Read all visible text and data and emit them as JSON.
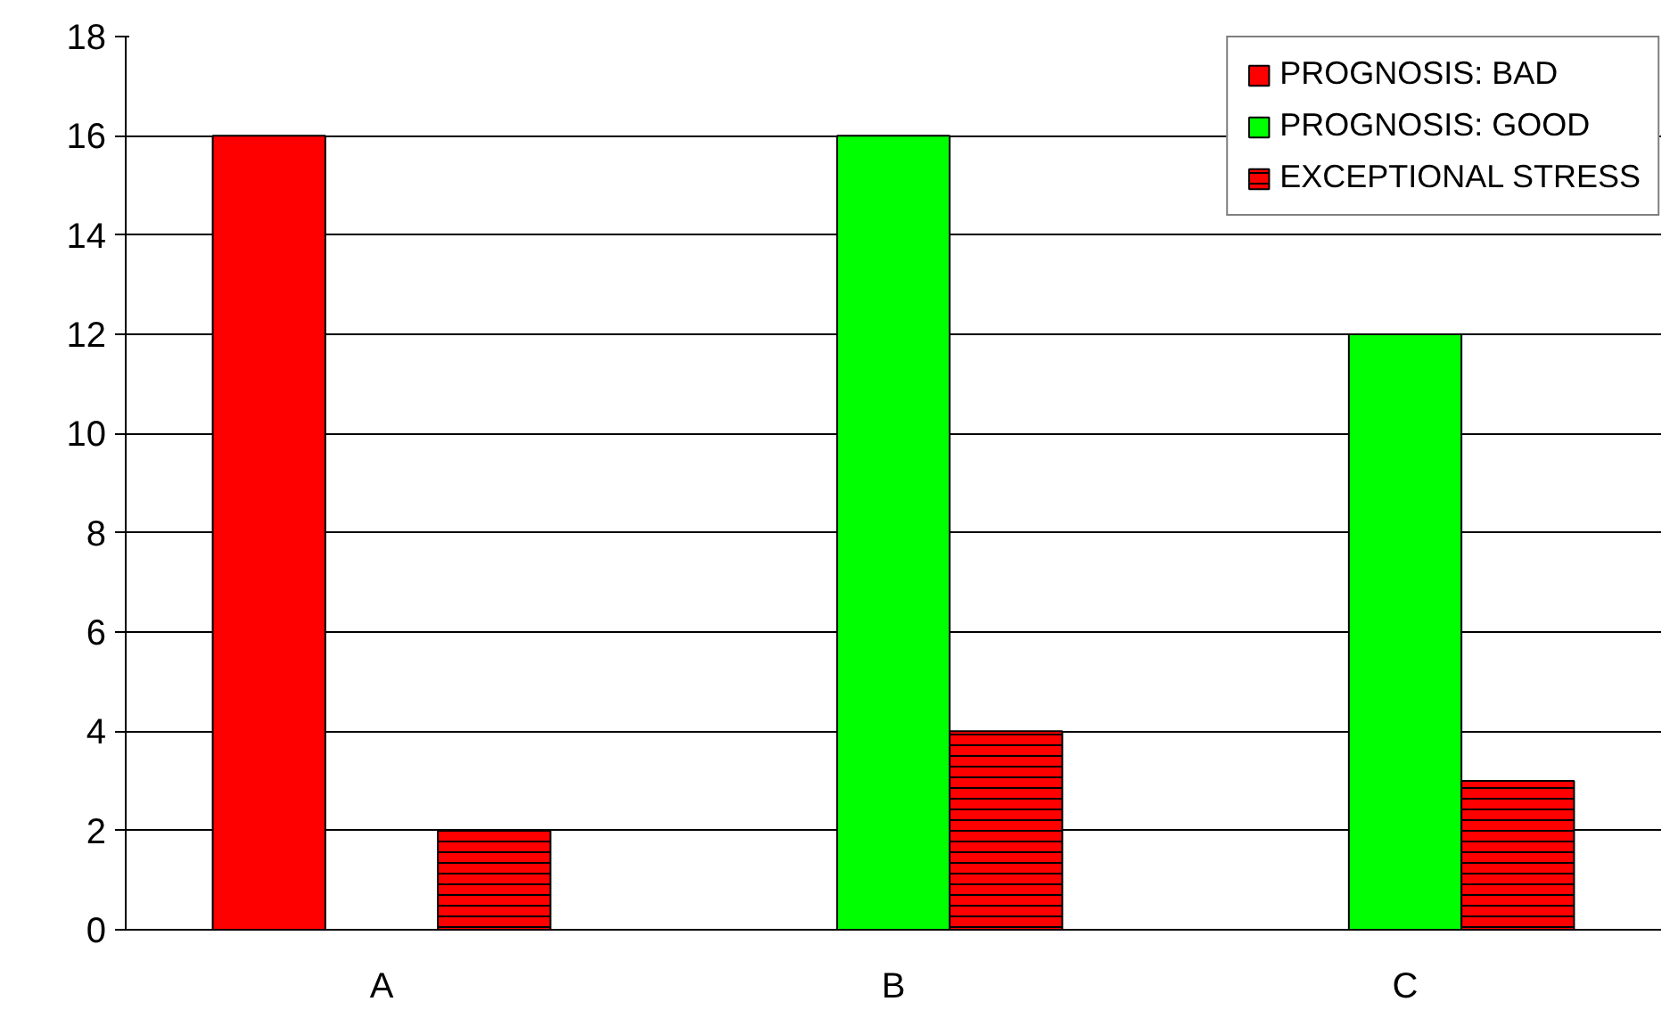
{
  "chart_data": {
    "type": "bar",
    "categories": [
      "A",
      "B",
      "C"
    ],
    "series": [
      {
        "name": "PROGNOSIS: BAD",
        "color": "#ff0000",
        "values": [
          16,
          null,
          null
        ]
      },
      {
        "name": "PROGNOSIS: GOOD",
        "color": "#00ff00",
        "values": [
          null,
          16,
          12
        ]
      },
      {
        "name": "EXCEPTIONAL STRESS",
        "color": "#ff0000",
        "values": [
          2,
          4,
          3
        ]
      }
    ],
    "ylim": [
      0,
      18
    ],
    "yticks": [
      0,
      2,
      4,
      6,
      8,
      10,
      12,
      14,
      16,
      18
    ],
    "grid": "y",
    "legend": "top right"
  }
}
